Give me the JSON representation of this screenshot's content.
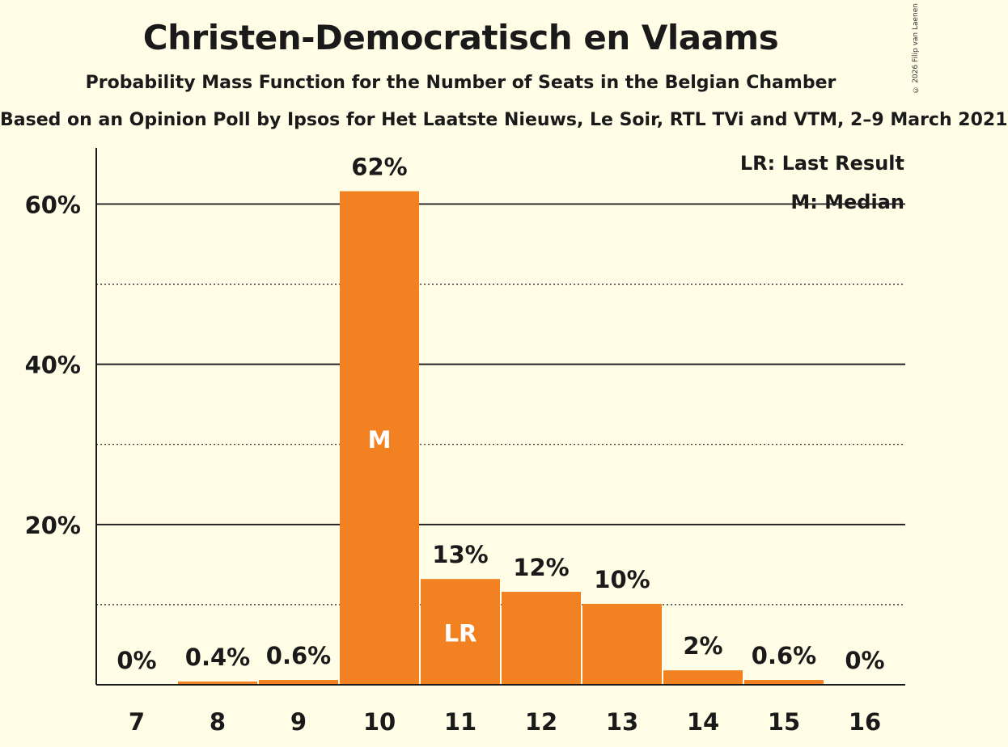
{
  "title": "Christen-Democratisch en Vlaams",
  "subtitle": "Probability Mass Function for the Number of Seats in the Belgian Chamber",
  "source": "Based on an Opinion Poll by Ipsos for Het Laatste Nieuws, Le Soir, RTL TVi and VTM, 2–9 March 2021",
  "copyright": "© 2026 Filip van Laenen",
  "colors": {
    "bar": "#f28122",
    "background": "#fffde6"
  },
  "chart_data": {
    "type": "bar",
    "categories": [
      "7",
      "8",
      "9",
      "10",
      "11",
      "12",
      "13",
      "14",
      "15",
      "16"
    ],
    "values": [
      0,
      0.4,
      0.6,
      61.6,
      13.2,
      11.6,
      10.1,
      1.8,
      0.6,
      0
    ],
    "data_labels": [
      "0%",
      "0.4%",
      "0.6%",
      "62%",
      "13%",
      "12%",
      "10%",
      "2%",
      "0.6%",
      "0%"
    ],
    "ylim": [
      0,
      67
    ],
    "yticks": [
      20,
      40,
      60
    ],
    "ytick_labels": [
      "20%",
      "40%",
      "60%"
    ],
    "minor_gridlines": [
      10,
      30,
      50
    ],
    "median_index": 3,
    "median_marker": "M",
    "last_result_index": 4,
    "last_result_marker": "LR",
    "legend": [
      "LR: Last Result",
      "M: Median"
    ],
    "legend_position": "top-right"
  }
}
